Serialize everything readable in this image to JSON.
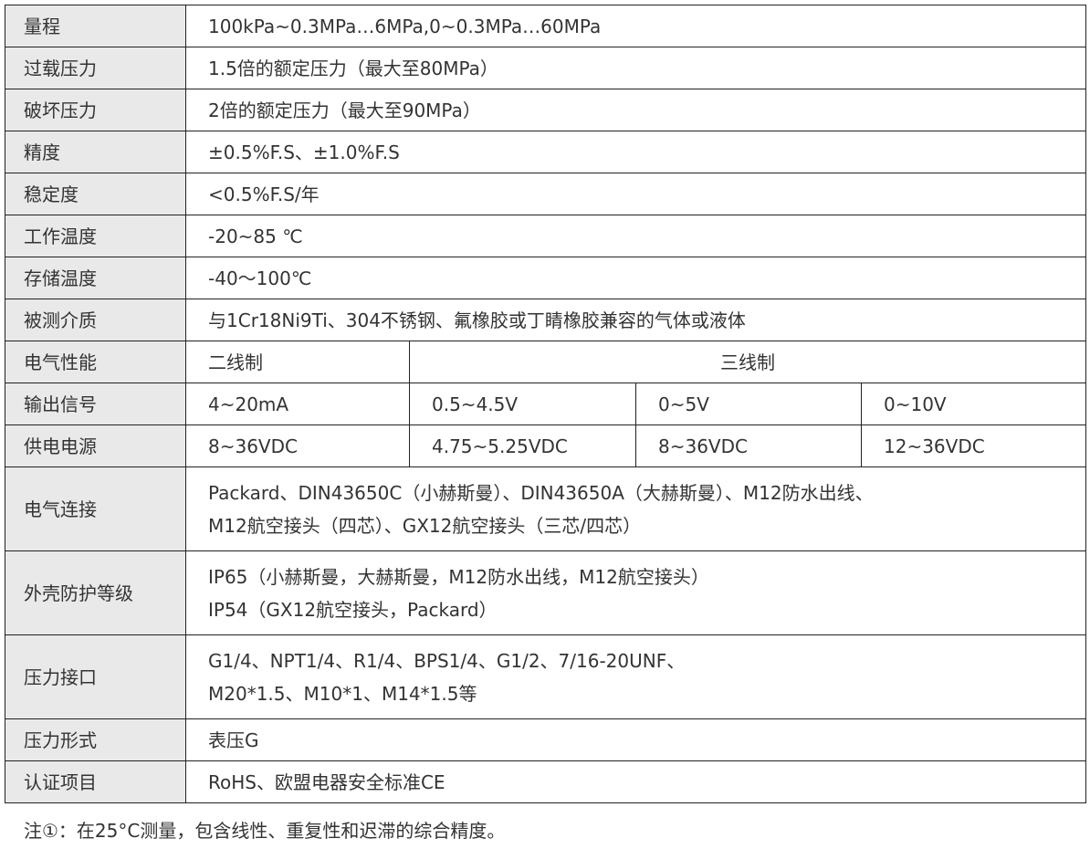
{
  "rows": [
    {
      "label": "量程",
      "value": "100kPa~0.3MPa…6MPa,0~0.3MPa…60MPa"
    },
    {
      "label": "过载压力",
      "value": "1.5倍的额定压力（最大至80MPa）"
    },
    {
      "label": "破坏压力",
      "value": "2倍的额定压力（最大至90MPa）"
    },
    {
      "label": "精度",
      "value": "±0.5%F.S、±1.0%F.S"
    },
    {
      "label": "稳定度",
      "value": "<0.5%F.S/年"
    },
    {
      "label": "工作温度",
      "value": "-20~85 ℃"
    },
    {
      "label": "存储温度",
      "value": "-40～100℃"
    },
    {
      "label": "被测介质",
      "value": "与1Cr18Ni9Ti、304不锈钢、氟橡胶或丁睛橡胶兼容的气体或液体"
    }
  ],
  "electrical": {
    "label": "电气性能",
    "two_wire": "二线制",
    "three_wire": "三线制"
  },
  "output": {
    "label": "输出信号",
    "values": [
      "4~20mA",
      "0.5~4.5V",
      "0~5V",
      "0~10V"
    ]
  },
  "power": {
    "label": "供电电源",
    "values": [
      "8~36VDC",
      "4.75~5.25VDC",
      "8~36VDC",
      "12~36VDC"
    ]
  },
  "multi": [
    {
      "label": "电气连接",
      "lines": [
        "Packard、DIN43650C（小赫斯曼）、DIN43650A（大赫斯曼）、M12防水出线、",
        "M12航空接头（四芯）、GX12航空接头（三芯/四芯）"
      ]
    },
    {
      "label": "外壳防护等级",
      "lines": [
        "IP65（小赫斯曼，大赫斯曼，M12防水出线，M12航空接头）",
        "IP54（GX12航空接头，Packard）"
      ]
    },
    {
      "label": "压力接口",
      "lines": [
        "G1/4、NPT1/4、R1/4、BPS1/4、G1/2、7/16-20UNF、",
        "M20*1.5、M10*1、M14*1.5等"
      ]
    }
  ],
  "tail": [
    {
      "label": "压力形式",
      "value": "表压G"
    },
    {
      "label": "认证项目",
      "value": "RoHS、欧盟电器安全标准CE"
    }
  ],
  "note": "注①：在25°C测量，包含线性、重复性和迟滞的综合精度。"
}
